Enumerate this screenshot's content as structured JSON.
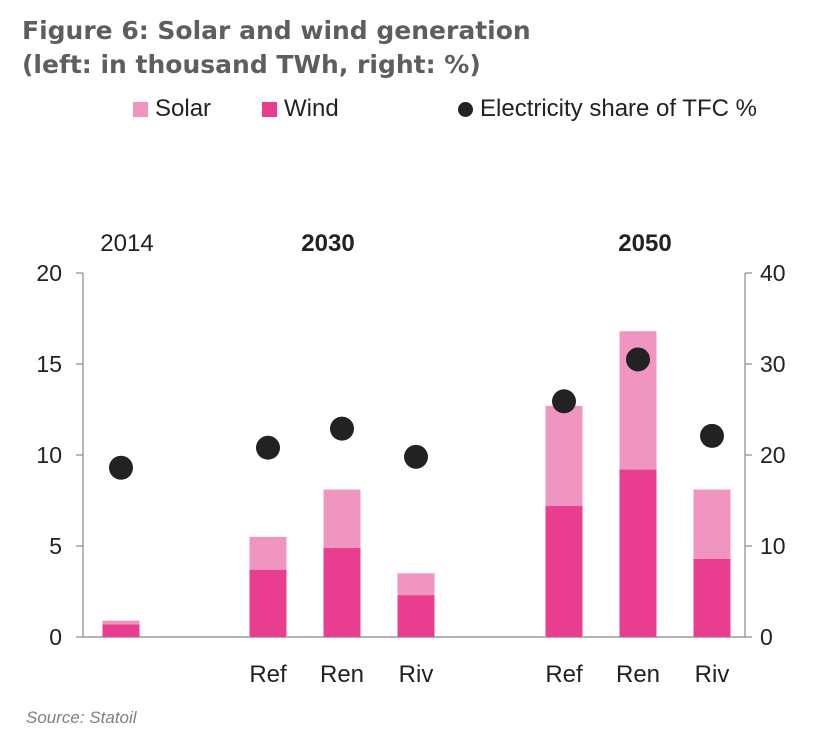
{
  "title_line1": "Figure 6: Solar and wind generation",
  "title_line2": "(left: in thousand TWh, right: %)",
  "source": "Source: Statoil",
  "colors": {
    "solar": "#f095bf",
    "wind": "#e93d8f",
    "dot": "#222222",
    "axis": "#888888",
    "text": "#222222"
  },
  "chart_data": {
    "type": "bar",
    "stacked": true,
    "year_groups": [
      {
        "label": "2014",
        "categories": [
          ""
        ]
      },
      {
        "label": "2030",
        "categories": [
          "Ref",
          "Ren",
          "Riv"
        ]
      },
      {
        "label": "2050",
        "categories": [
          "Ref",
          "Ren",
          "Riv"
        ]
      }
    ],
    "categories": [
      "2014",
      "2030 Ref",
      "2030 Ren",
      "2030 Riv",
      "2050 Ref",
      "2050 Ren",
      "2050 Riv"
    ],
    "tick_labels": [
      "",
      "Ref",
      "Ren",
      "Riv",
      "Ref",
      "Ren",
      "Riv"
    ],
    "series": [
      {
        "name": "Wind",
        "type": "bar",
        "axis": "left",
        "values": [
          0.7,
          3.7,
          4.9,
          2.3,
          7.2,
          9.2,
          4.3
        ]
      },
      {
        "name": "Solar",
        "type": "bar",
        "axis": "left",
        "values": [
          0.2,
          1.8,
          3.2,
          1.2,
          5.5,
          7.6,
          3.8
        ]
      },
      {
        "name": "Electricity share of TFC %",
        "type": "scatter",
        "axis": "right",
        "values": [
          18.6,
          20.8,
          22.9,
          19.8,
          25.9,
          30.5,
          22.1
        ]
      }
    ],
    "legend": [
      {
        "name": "Solar",
        "marker": "square",
        "color_key": "solar"
      },
      {
        "name": "Wind",
        "marker": "square",
        "color_key": "wind"
      },
      {
        "name": "Electricity share of TFC %",
        "marker": "circle",
        "color_key": "dot"
      }
    ],
    "legend_position": "top",
    "y_left": {
      "min": 0,
      "max": 20,
      "ticks": [
        0,
        5,
        10,
        15,
        20
      ]
    },
    "y_right": {
      "min": 0,
      "max": 40,
      "ticks": [
        0,
        10,
        20,
        30,
        40
      ]
    },
    "grid": false
  }
}
